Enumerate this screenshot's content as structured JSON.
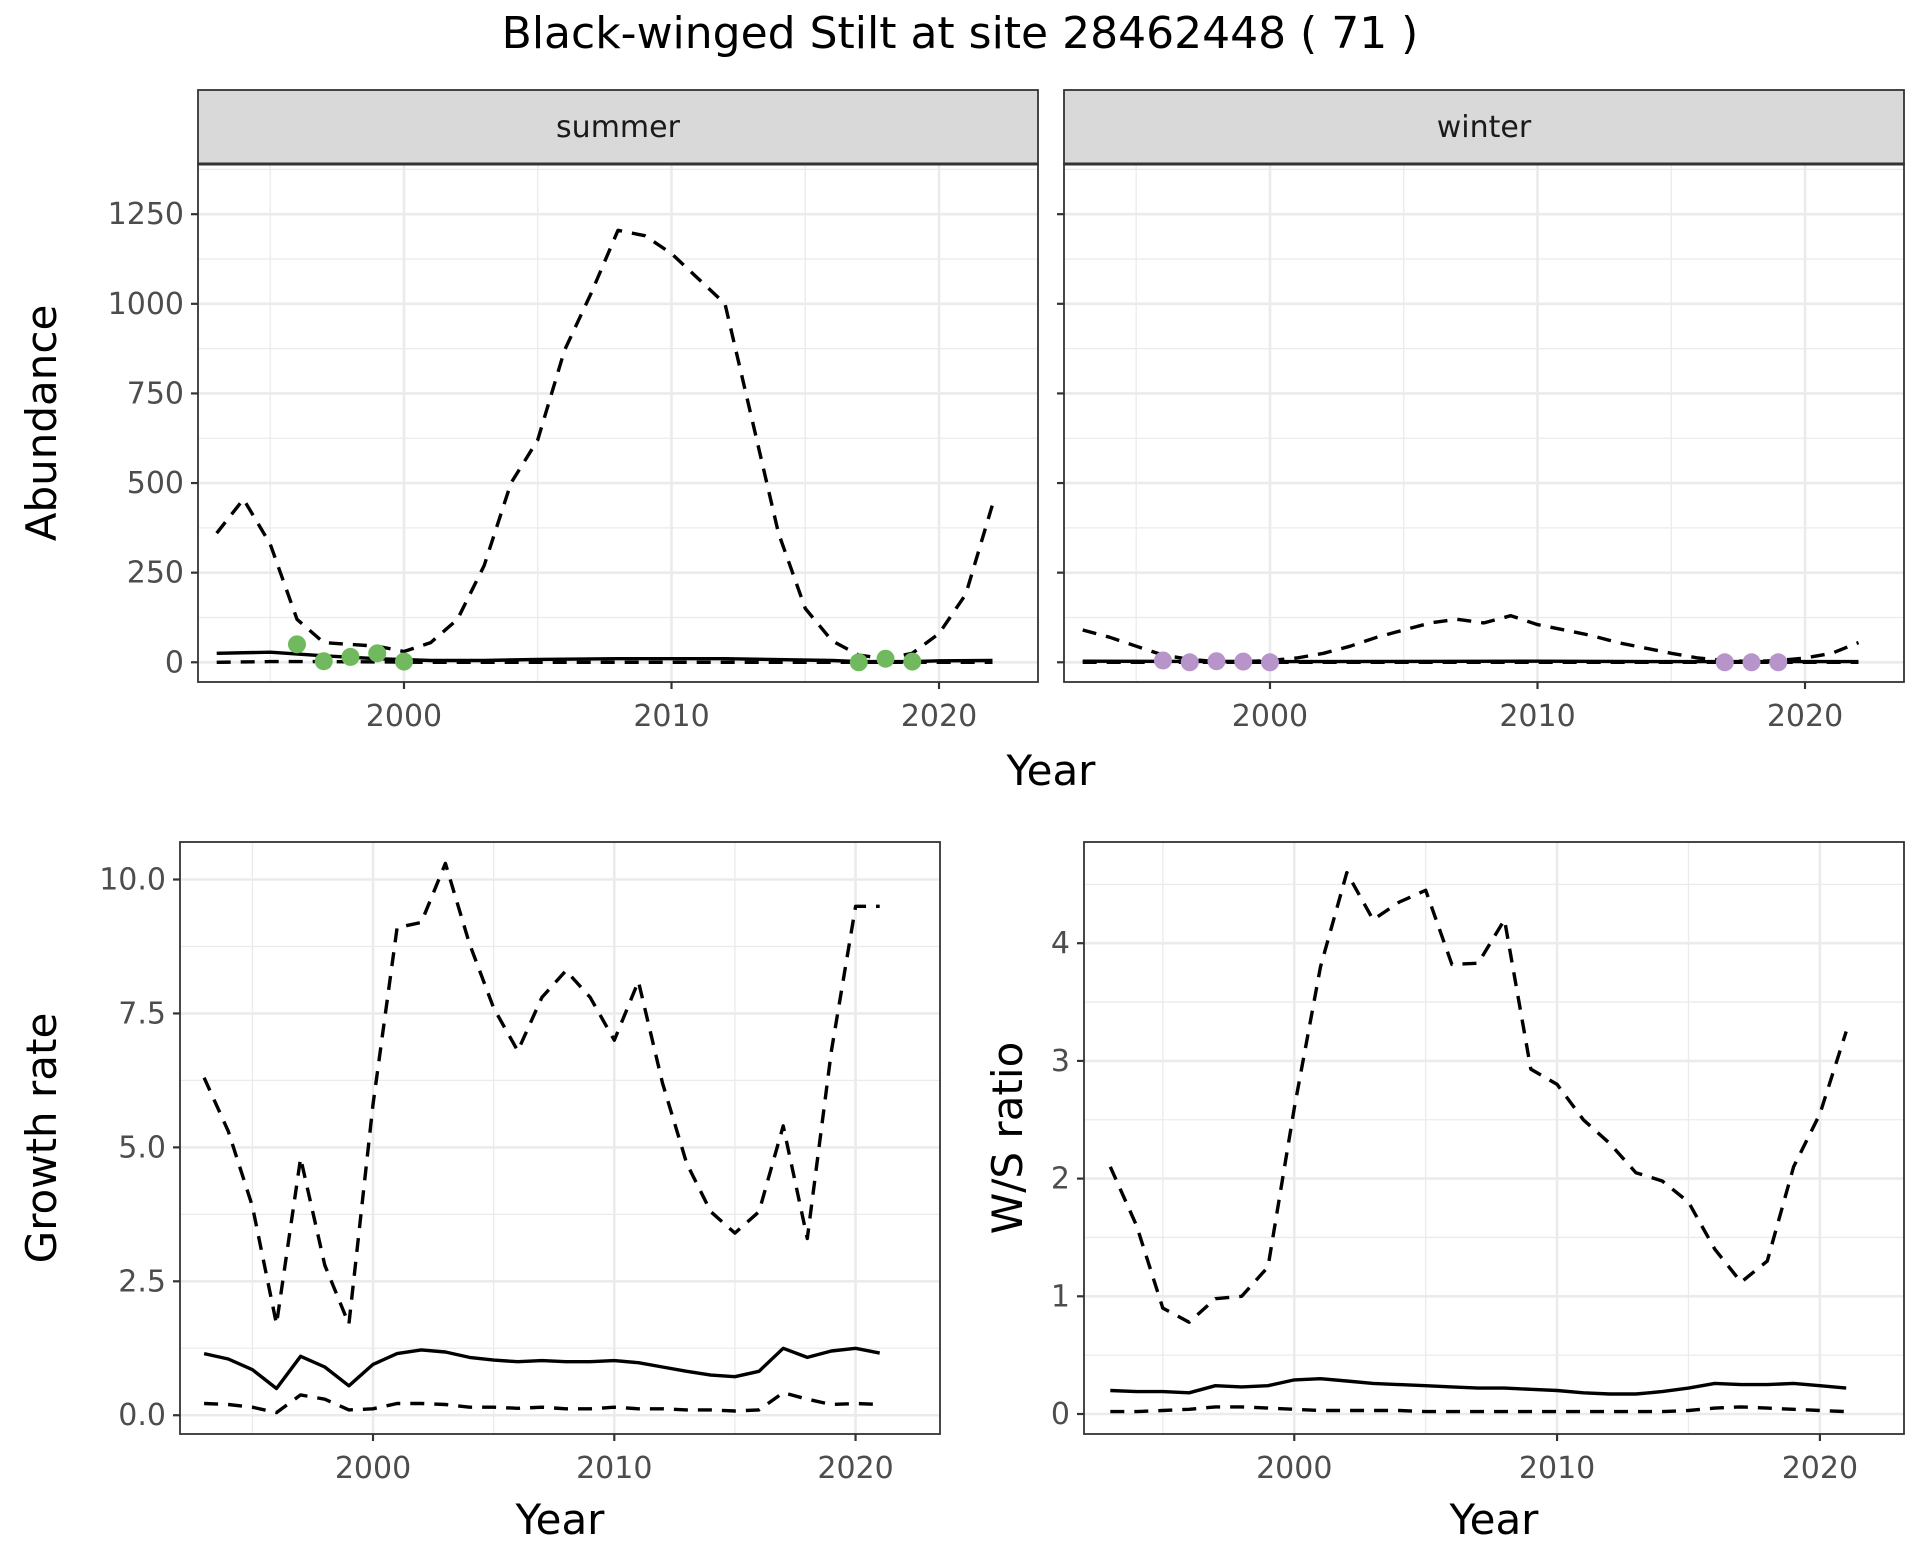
{
  "figure": {
    "title": "Black-winged Stilt at site 28462448 ( 71 )"
  },
  "colors": {
    "summer_points": "#70b95e",
    "winter_points": "#b794c9",
    "lines": "#000000",
    "strip": "#d9d9d9"
  },
  "chart_data": [
    {
      "id": "abundance",
      "type": "line",
      "facets": [
        "summer",
        "winter"
      ],
      "xlabel": "Year",
      "ylabel": "Abundance",
      "xlim": [
        1992.3,
        2023.7
      ],
      "ylim": [
        -55,
        1390
      ],
      "xticks": [
        2000,
        2010,
        2020
      ],
      "yticks": [
        0,
        250,
        500,
        750,
        1000,
        1250
      ],
      "grid": true,
      "panels": [
        {
          "strip": "summer",
          "series": [
            {
              "style": "solid",
              "x": [
                1993,
                1995,
                1997,
                1999,
                2001,
                2003,
                2005,
                2008,
                2012,
                2016,
                2017,
                2019,
                2020,
                2022
              ],
              "y": [
                25,
                28,
                18,
                10,
                5,
                5,
                8,
                10,
                10,
                5,
                2,
                2,
                4,
                5
              ]
            },
            {
              "style": "dashed-lower",
              "x": [
                1993,
                1995,
                1997,
                1999,
                2001,
                2004,
                2008,
                2012,
                2016,
                2019,
                2022
              ],
              "y": [
                0,
                2,
                2,
                1,
                0,
                0,
                0,
                0,
                0,
                0,
                0
              ]
            },
            {
              "style": "dashed-upper",
              "x": [
                1993,
                1994,
                1995,
                1996,
                1997,
                1998,
                1999,
                2000,
                2001,
                2002,
                2003,
                2004,
                2005,
                2006,
                2007,
                2008,
                2009,
                2010,
                2011,
                2012,
                2013,
                2014,
                2015,
                2016,
                2017,
                2018,
                2019,
                2020,
                2021,
                2022
              ],
              "y": [
                360,
                455,
                330,
                120,
                55,
                50,
                45,
                30,
                55,
                120,
                270,
                500,
                620,
                870,
                1030,
                1205,
                1190,
                1140,
                1070,
                1000,
                680,
                360,
                150,
                60,
                20,
                10,
                25,
                80,
                190,
                440
              ]
            }
          ],
          "points": {
            "x": [
              1996,
              1997,
              1998,
              1999,
              2000,
              2017,
              2018,
              2019
            ],
            "y": [
              50,
              3,
              15,
              25,
              2,
              0,
              10,
              2
            ]
          }
        },
        {
          "strip": "winter",
          "series": [
            {
              "style": "solid",
              "x": [
                1993,
                2000,
                2010,
                2015,
                2022
              ],
              "y": [
                3,
                2,
                3,
                2,
                2
              ]
            },
            {
              "style": "dashed-lower",
              "x": [
                1993,
                2000,
                2010,
                2022
              ],
              "y": [
                0,
                0,
                0,
                0
              ]
            },
            {
              "style": "dashed-upper",
              "x": [
                1993,
                1994,
                1995,
                1996,
                1997,
                1998,
                1999,
                2000,
                2001,
                2002,
                2003,
                2004,
                2005,
                2006,
                2007,
                2008,
                2009,
                2010,
                2011,
                2012,
                2013,
                2014,
                2015,
                2016,
                2017,
                2018,
                2019,
                2020,
                2021,
                2022
              ],
              "y": [
                90,
                70,
                45,
                20,
                8,
                2,
                2,
                5,
                12,
                25,
                45,
                70,
                90,
                110,
                120,
                110,
                130,
                105,
                90,
                75,
                55,
                40,
                25,
                12,
                5,
                2,
                5,
                12,
                25,
                55
              ]
            }
          ],
          "points": {
            "x": [
              1996,
              1997,
              1998,
              1999,
              2000,
              2017,
              2018,
              2019
            ],
            "y": [
              5,
              0,
              3,
              2,
              0,
              0,
              0,
              0
            ]
          }
        }
      ]
    },
    {
      "id": "growth",
      "type": "line",
      "xlabel": "Year",
      "ylabel": "Growth rate",
      "xlim": [
        1992,
        2023.5
      ],
      "ylim": [
        -0.35,
        10.7
      ],
      "xticks": [
        2000,
        2010,
        2020
      ],
      "yticks": [
        0.0,
        2.5,
        5.0,
        7.5,
        10.0
      ],
      "ytick_labels": [
        "0.0",
        "2.5",
        "5.0",
        "7.5",
        "10.0"
      ],
      "grid": true,
      "series": [
        {
          "style": "solid",
          "x": [
            1993,
            1994,
            1995,
            1996,
            1997,
            1998,
            1999,
            2000,
            2001,
            2002,
            2003,
            2004,
            2005,
            2006,
            2007,
            2008,
            2009,
            2010,
            2011,
            2012,
            2013,
            2014,
            2015,
            2016,
            2017,
            2018,
            2019,
            2020,
            2021
          ],
          "y": [
            1.15,
            1.05,
            0.85,
            0.5,
            1.1,
            0.9,
            0.55,
            0.95,
            1.15,
            1.22,
            1.18,
            1.08,
            1.03,
            1.0,
            1.02,
            1.0,
            1.0,
            1.02,
            0.98,
            0.9,
            0.82,
            0.75,
            0.72,
            0.82,
            1.25,
            1.08,
            1.2,
            1.25,
            1.16
          ]
        },
        {
          "style": "dashed-lower",
          "x": [
            1993,
            1994,
            1995,
            1996,
            1997,
            1998,
            1999,
            2000,
            2001,
            2002,
            2003,
            2004,
            2005,
            2006,
            2007,
            2008,
            2009,
            2010,
            2011,
            2012,
            2013,
            2014,
            2015,
            2016,
            2017,
            2018,
            2019,
            2020,
            2021
          ],
          "y": [
            0.22,
            0.2,
            0.15,
            0.05,
            0.38,
            0.3,
            0.1,
            0.12,
            0.22,
            0.22,
            0.2,
            0.15,
            0.15,
            0.13,
            0.15,
            0.12,
            0.12,
            0.15,
            0.12,
            0.12,
            0.1,
            0.1,
            0.08,
            0.1,
            0.42,
            0.3,
            0.2,
            0.22,
            0.2
          ]
        },
        {
          "style": "dashed-upper",
          "x": [
            1993,
            1994,
            1995,
            1996,
            1997,
            1998,
            1999,
            2000,
            2001,
            2002,
            2003,
            2004,
            2005,
            2006,
            2007,
            2008,
            2009,
            2010,
            2011,
            2012,
            2013,
            2014,
            2015,
            2016,
            2017,
            2018,
            2019,
            2020,
            2021
          ],
          "y": [
            6.3,
            5.3,
            3.9,
            1.7,
            4.8,
            2.8,
            1.7,
            5.8,
            9.1,
            9.2,
            10.3,
            8.8,
            7.6,
            6.8,
            7.8,
            8.3,
            7.8,
            7.0,
            8.1,
            6.2,
            4.7,
            3.8,
            3.4,
            3.8,
            5.4,
            3.3,
            6.8,
            9.5,
            9.5
          ]
        }
      ]
    },
    {
      "id": "ws_ratio",
      "type": "line",
      "xlabel": "Year",
      "ylabel": "W/S ratio",
      "xlim": [
        1992,
        2023.2
      ],
      "ylim": [
        -0.17,
        4.86
      ],
      "xticks": [
        2000,
        2010,
        2020
      ],
      "yticks": [
        0,
        1,
        2,
        3,
        4
      ],
      "grid": true,
      "series": [
        {
          "style": "solid",
          "x": [
            1993,
            1994,
            1995,
            1996,
            1997,
            1998,
            1999,
            2000,
            2001,
            2002,
            2003,
            2004,
            2005,
            2006,
            2007,
            2008,
            2009,
            2010,
            2011,
            2012,
            2013,
            2014,
            2015,
            2016,
            2017,
            2018,
            2019,
            2020,
            2021
          ],
          "y": [
            0.2,
            0.19,
            0.19,
            0.18,
            0.24,
            0.23,
            0.24,
            0.29,
            0.3,
            0.28,
            0.26,
            0.25,
            0.24,
            0.23,
            0.22,
            0.22,
            0.21,
            0.2,
            0.18,
            0.17,
            0.17,
            0.19,
            0.22,
            0.26,
            0.25,
            0.25,
            0.26,
            0.24,
            0.22
          ]
        },
        {
          "style": "dashed-lower",
          "x": [
            1993,
            1994,
            1995,
            1996,
            1997,
            1998,
            1999,
            2000,
            2001,
            2002,
            2003,
            2004,
            2005,
            2006,
            2007,
            2008,
            2009,
            2010,
            2011,
            2012,
            2013,
            2014,
            2015,
            2016,
            2017,
            2018,
            2019,
            2020,
            2021
          ],
          "y": [
            0.02,
            0.02,
            0.03,
            0.04,
            0.06,
            0.06,
            0.05,
            0.04,
            0.03,
            0.03,
            0.03,
            0.03,
            0.02,
            0.02,
            0.02,
            0.02,
            0.02,
            0.02,
            0.02,
            0.02,
            0.02,
            0.02,
            0.03,
            0.05,
            0.06,
            0.05,
            0.04,
            0.03,
            0.02
          ]
        },
        {
          "style": "dashed-upper",
          "x": [
            1993,
            1994,
            1995,
            1996,
            1997,
            1998,
            1999,
            2000,
            2001,
            2002,
            2003,
            2004,
            2005,
            2006,
            2007,
            2008,
            2009,
            2010,
            2011,
            2012,
            2013,
            2014,
            2015,
            2016,
            2017,
            2018,
            2019,
            2020,
            2021
          ],
          "y": [
            2.1,
            1.6,
            0.9,
            0.78,
            0.98,
            1.0,
            1.25,
            2.6,
            3.8,
            4.6,
            4.2,
            4.35,
            4.45,
            3.82,
            3.83,
            4.2,
            2.93,
            2.8,
            2.5,
            2.3,
            2.05,
            1.98,
            1.8,
            1.4,
            1.12,
            1.3,
            2.1,
            2.55,
            3.25
          ]
        }
      ]
    }
  ]
}
